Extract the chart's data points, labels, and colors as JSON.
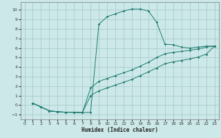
{
  "xlabel": "Humidex (Indice chaleur)",
  "bg_color": "#cce8e8",
  "grid_color": "#aacccc",
  "line_color": "#1a7a6e",
  "xlim": [
    -0.5,
    23.5
  ],
  "ylim": [
    -1.5,
    10.8
  ],
  "xticks": [
    0,
    1,
    2,
    3,
    4,
    5,
    6,
    7,
    8,
    9,
    10,
    11,
    12,
    13,
    14,
    15,
    16,
    17,
    18,
    19,
    20,
    21,
    22,
    23
  ],
  "yticks": [
    -1,
    0,
    1,
    2,
    3,
    4,
    5,
    6,
    7,
    8,
    9,
    10
  ],
  "line1_x": [
    1,
    2,
    3,
    4,
    5,
    6,
    7,
    8,
    9,
    10,
    11,
    12,
    13,
    14,
    15,
    16,
    17,
    18,
    19,
    20,
    21,
    22,
    23
  ],
  "line1_y": [
    0.2,
    -0.2,
    -0.6,
    -0.7,
    -0.75,
    -0.75,
    -0.8,
    -0.75,
    8.5,
    9.3,
    9.6,
    9.9,
    10.1,
    10.1,
    9.9,
    8.7,
    6.4,
    6.35,
    6.1,
    6.0,
    6.1,
    6.2,
    6.2
  ],
  "line2_x": [
    1,
    2,
    3,
    4,
    5,
    6,
    7,
    8,
    9,
    10,
    11,
    12,
    13,
    14,
    15,
    16,
    17,
    18,
    19,
    20,
    21,
    22,
    23
  ],
  "line2_y": [
    0.2,
    -0.2,
    -0.6,
    -0.7,
    -0.75,
    -0.75,
    -0.8,
    1.8,
    2.5,
    2.8,
    3.1,
    3.4,
    3.7,
    4.1,
    4.5,
    5.0,
    5.4,
    5.55,
    5.65,
    5.75,
    5.9,
    6.1,
    6.2
  ],
  "line3_x": [
    1,
    2,
    3,
    4,
    5,
    6,
    7,
    8,
    9,
    10,
    11,
    12,
    13,
    14,
    15,
    16,
    17,
    18,
    19,
    20,
    21,
    22,
    23
  ],
  "line3_y": [
    0.2,
    -0.2,
    -0.6,
    -0.7,
    -0.75,
    -0.75,
    -0.8,
    1.0,
    1.5,
    1.8,
    2.1,
    2.4,
    2.7,
    3.1,
    3.5,
    3.9,
    4.35,
    4.55,
    4.7,
    4.85,
    5.05,
    5.35,
    6.2
  ]
}
